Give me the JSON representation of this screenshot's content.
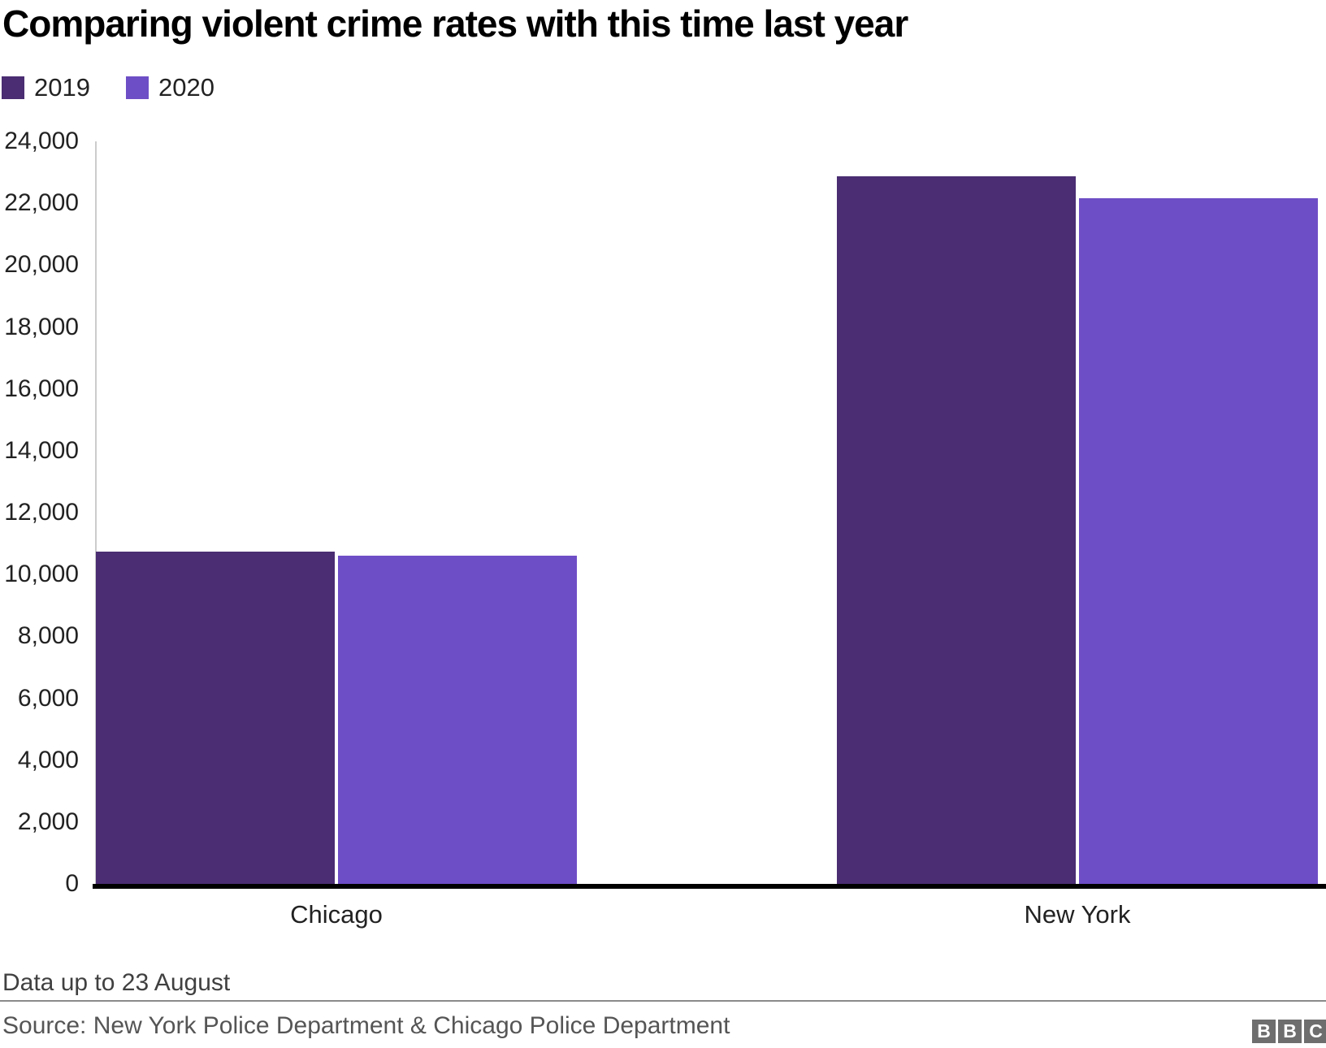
{
  "title": "Comparing violent crime rates with this time last year",
  "legend": {
    "items": [
      {
        "label": "2019",
        "color": "#4a2d72"
      },
      {
        "label": "2020",
        "color": "#6e4ec6"
      }
    ]
  },
  "footnote": "Data up to 23 August",
  "source": "Source: New York Police Department & Chicago Police Department",
  "logo": {
    "letters": [
      "B",
      "B",
      "C"
    ]
  },
  "colors": {
    "series_2019": "#4a2d72",
    "series_2020": "#6e4ec6",
    "axis_line": "#cccccc",
    "baseline": "#000000",
    "tick_text": "#222222",
    "footnote_text": "#404040",
    "source_text": "#555555",
    "logo_gray": "#6e6e6e"
  },
  "chart_data": {
    "type": "bar",
    "title": "Comparing violent crime rates with this time last year",
    "categories": [
      "Chicago",
      "New York"
    ],
    "series": [
      {
        "name": "2019",
        "color": "#4a2d72",
        "values": [
          10740,
          22880
        ]
      },
      {
        "name": "2020",
        "color": "#6e4ec6",
        "values": [
          10620,
          22160
        ]
      }
    ],
    "xlabel": "",
    "ylabel": "",
    "ylim": [
      0,
      24000
    ],
    "ytick_step": 2000,
    "grid": false,
    "legend_position": "top-left",
    "footnote": "Data up to 23 August",
    "source": "Source: New York Police Department & Chicago Police Department"
  }
}
